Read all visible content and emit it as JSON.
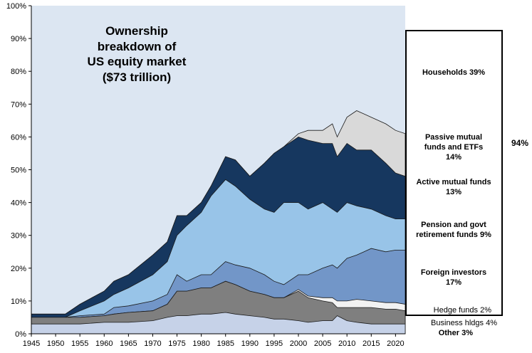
{
  "chart_data": {
    "type": "area",
    "title": [
      "Ownership",
      "breakdown  of",
      "US equity market",
      "($73 trillion)"
    ],
    "xlabel": "",
    "ylabel": "",
    "xlim": [
      1945,
      2022
    ],
    "ylim": [
      0,
      100
    ],
    "x_ticks": [
      1945,
      1950,
      1955,
      1960,
      1965,
      1970,
      1975,
      1980,
      1985,
      1990,
      1995,
      2000,
      2005,
      2010,
      2015,
      2020
    ],
    "y_ticks": [
      0,
      10,
      20,
      30,
      40,
      50,
      60,
      70,
      80,
      90,
      100
    ],
    "y_tick_labels": [
      "0%",
      "10%",
      "20%",
      "30%",
      "40%",
      "50%",
      "60%",
      "70%",
      "80%",
      "90%",
      "100%"
    ],
    "stacking": "cumulative upper boundaries, bottom layer first",
    "x": [
      1945,
      1950,
      1952,
      1955,
      1960,
      1962,
      1965,
      1970,
      1973,
      1975,
      1977,
      1980,
      1982,
      1985,
      1987,
      1990,
      1993,
      1995,
      1997,
      2000,
      2002,
      2005,
      2007,
      2008,
      2010,
      2012,
      2015,
      2018,
      2020,
      2022
    ],
    "series": [
      {
        "name": "Other",
        "color": "#c6d2e8",
        "values": [
          3,
          3,
          3,
          3,
          3.5,
          3.5,
          3.5,
          4,
          5,
          5.5,
          5.5,
          6,
          6,
          6.5,
          6,
          5.5,
          5,
          4.5,
          4.5,
          4,
          3.5,
          4,
          4,
          5.5,
          4,
          3.5,
          3,
          3,
          3,
          3
        ]
      },
      {
        "name": "Business hldgs",
        "color": "#7f7f7f",
        "values": [
          5,
          5,
          5,
          5,
          5.5,
          6,
          6.5,
          7,
          9,
          13,
          13,
          14,
          14,
          16,
          15,
          13,
          12,
          11,
          11,
          13,
          11,
          10,
          9.5,
          8,
          8,
          8,
          8,
          7.5,
          7.5,
          7
        ]
      },
      {
        "name": "Hedge funds",
        "color": "#f2f2f2",
        "values": [
          5,
          5,
          5,
          5,
          5.5,
          6,
          6.5,
          7,
          9,
          13,
          13,
          14,
          14,
          16,
          15,
          13,
          12,
          11,
          11,
          13.5,
          11.5,
          11,
          11,
          10,
          10,
          10.5,
          10,
          9.5,
          9.5,
          9
        ]
      },
      {
        "name": "Foreign investors",
        "color": "#7296c8",
        "values": [
          5,
          5,
          5,
          5.5,
          6,
          8,
          8.5,
          10,
          12,
          18,
          16,
          18,
          18,
          22,
          21,
          20,
          18,
          16,
          15,
          18,
          18,
          20,
          21,
          20,
          23,
          24,
          26,
          25,
          25.5,
          25.5
        ]
      },
      {
        "name": "Pension and govt retirement funds",
        "color": "#98c4e8",
        "values": [
          5,
          5,
          5,
          7,
          10,
          12,
          14,
          18,
          22,
          30,
          33,
          37,
          42,
          47,
          45,
          41,
          38,
          37,
          40,
          40,
          38,
          40,
          38,
          37,
          40,
          39,
          38,
          36,
          35,
          35
        ]
      },
      {
        "name": "Active mutual funds",
        "color": "#16375f",
        "values": [
          6,
          6,
          6,
          9,
          13,
          16,
          18,
          24,
          28,
          36,
          36,
          40,
          45,
          54,
          53,
          48,
          52,
          55,
          57,
          60,
          59,
          58,
          58,
          54,
          58,
          56,
          56,
          52,
          49,
          48
        ]
      },
      {
        "name": "Passive mutual funds and ETFs",
        "color": "#d9d9d9",
        "values": [
          6,
          6,
          6,
          9,
          13,
          16,
          18,
          24,
          28,
          36,
          36,
          40,
          45,
          54,
          53,
          48,
          52,
          55,
          57,
          61,
          62,
          62,
          64,
          60,
          66,
          68,
          66,
          64,
          62,
          61
        ]
      }
    ],
    "legend": [
      {
        "text": "Households 39%"
      },
      {
        "text": "Passive mutual funds and ETFs 14%",
        "lines": [
          "Passive mutual",
          "funds and ETFs",
          "14%"
        ]
      },
      {
        "text": "Active mutual funds 13%",
        "lines": [
          "Active mutual funds",
          "13%"
        ]
      },
      {
        "text": "Pension and govt retirement funds 9%",
        "lines": [
          "Pension and govt",
          "retirement funds 9%"
        ]
      },
      {
        "text": "Foreign investors 17%",
        "lines": [
          "Foreign investors",
          "17%"
        ]
      },
      {
        "text": "Hedge funds  2%"
      },
      {
        "text": "Business hldgs  4%"
      },
      {
        "text": "Other 3%"
      }
    ],
    "bracket_total": "94%",
    "plot_background": "#dce6f2"
  }
}
